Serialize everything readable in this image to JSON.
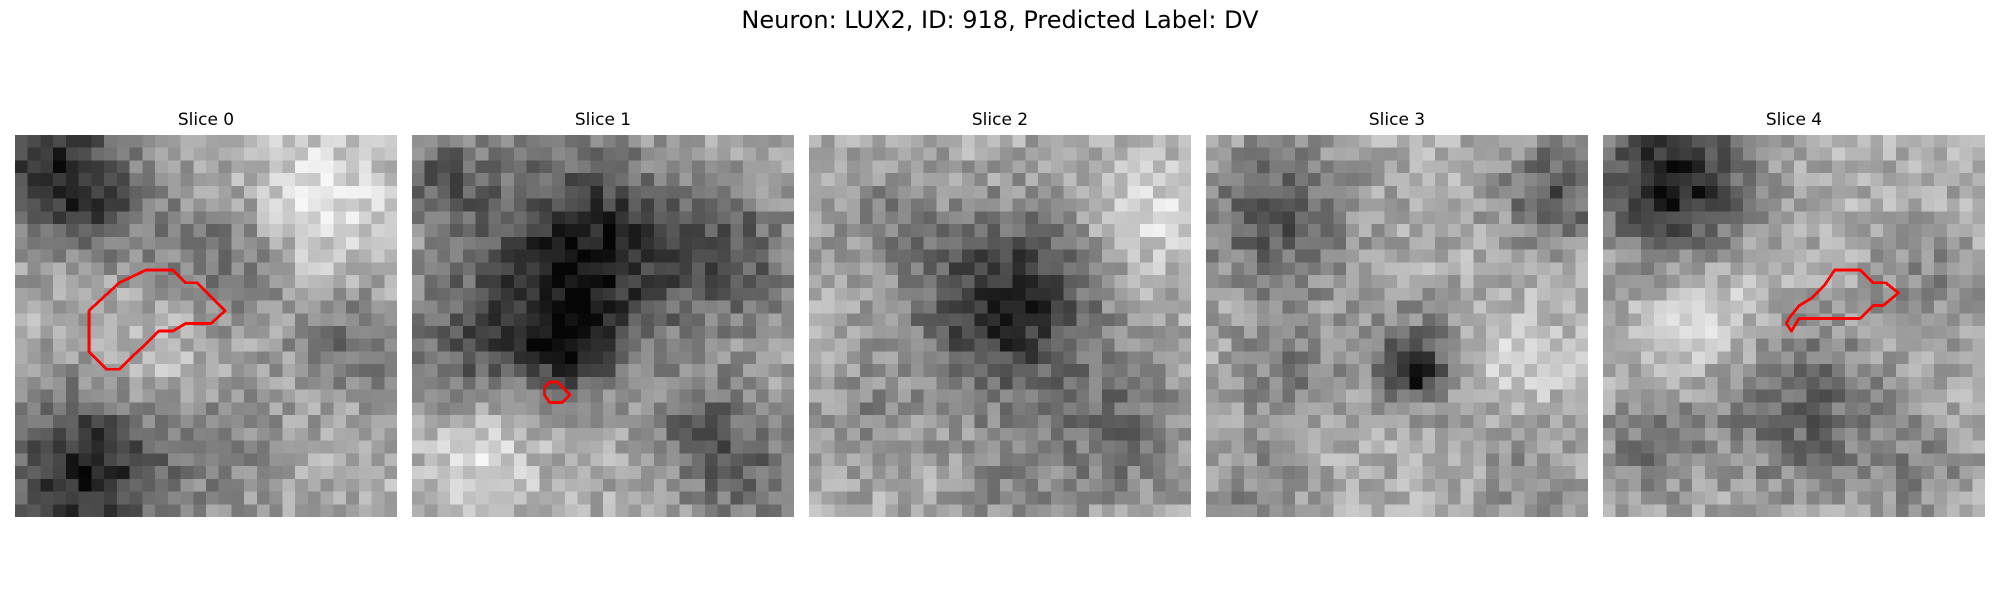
{
  "figure": {
    "title": "Neuron: LUX2, ID: 918, Predicted Label: DV"
  },
  "panels": [
    {
      "title": "Slice 0",
      "outline_color": "#ff0000"
    },
    {
      "title": "Slice 1",
      "outline_color": "#ff0000"
    },
    {
      "title": "Slice 2",
      "outline_color": "#ff0000"
    },
    {
      "title": "Slice 3",
      "outline_color": "#ff0000"
    },
    {
      "title": "Slice 4",
      "outline_color": "#ff0000"
    }
  ]
}
